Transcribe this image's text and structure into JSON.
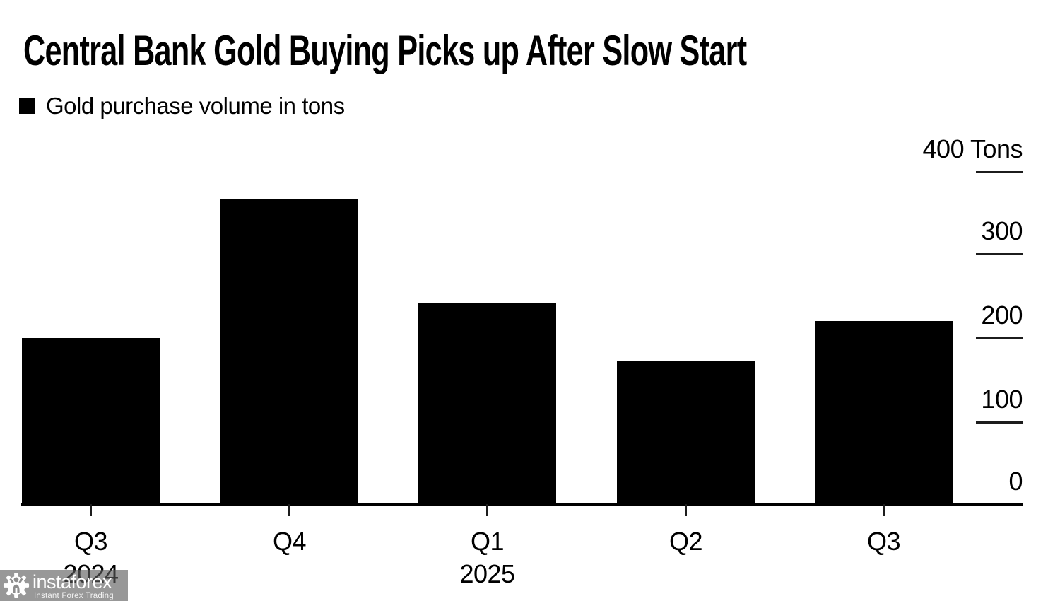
{
  "title": "Central Bank Gold Buying Picks up After Slow Start",
  "legend": {
    "label": "Gold purchase volume in tons",
    "swatch_color": "#000000"
  },
  "chart_data": {
    "type": "bar",
    "title": "Central Bank Gold Buying Picks up After Slow Start",
    "legend_entries": [
      "Gold purchase volume in tons"
    ],
    "legend_position": "top-left",
    "categories": [
      "Q3 2024",
      "Q4 2024",
      "Q1 2025",
      "Q2 2025",
      "Q3 2025"
    ],
    "values": [
      199,
      366,
      242,
      171,
      220
    ],
    "xlabel": "",
    "ylabel": "Tons",
    "ylim": [
      0,
      400
    ],
    "yticks": [
      0,
      100,
      200,
      300,
      400
    ],
    "y_axis_side": "right",
    "grid": false,
    "bar_color": "#000000"
  },
  "y_axis": {
    "ticks": [
      {
        "label": "400 Tons",
        "value": 400
      },
      {
        "label": "300",
        "value": 300
      },
      {
        "label": "200",
        "value": 200
      },
      {
        "label": "100",
        "value": 100
      },
      {
        "label": "0",
        "value": 0
      }
    ]
  },
  "x_axis": {
    "groups": [
      {
        "quarter": "Q3",
        "year": "2024"
      },
      {
        "quarter": "Q4",
        "year": ""
      },
      {
        "quarter": "Q1",
        "year": "2025"
      },
      {
        "quarter": "Q2",
        "year": ""
      },
      {
        "quarter": "Q3",
        "year": ""
      }
    ]
  },
  "watermark": {
    "icon": "gear-person-icon",
    "brand": "instaforex",
    "tagline": "Instant Forex Trading"
  },
  "colors": {
    "bar": "#000000",
    "axis": "#000000",
    "tick": "#1c1c1c",
    "text": "#000000",
    "watermark_bg": "#8f8f8f",
    "watermark_text": "#ffffff"
  }
}
